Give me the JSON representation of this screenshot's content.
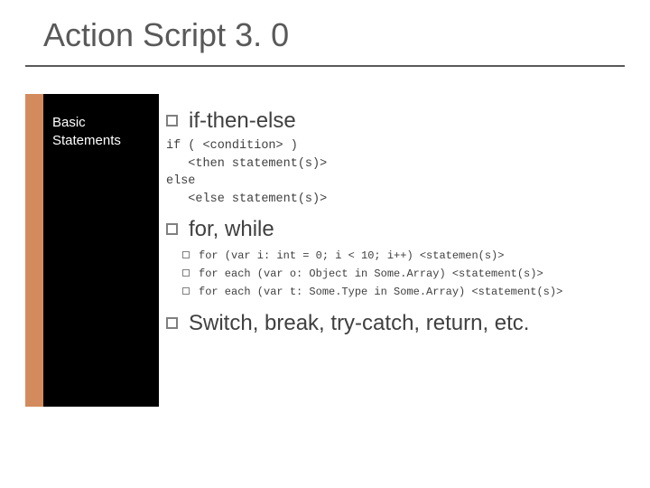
{
  "title": "Action Script 3. 0",
  "sidebar": {
    "line1": "Basic",
    "line2": "Statements"
  },
  "sections": {
    "ifthenelse": {
      "heading": "if-then-else",
      "code": "if ( <condition> )\n   <then statement(s)>\nelse\n   <else statement(s)>"
    },
    "forwhile": {
      "heading": "for, while",
      "items": [
        "for (var i: int = 0; i < 10; i++) <statemen(s)>",
        "for each (var o: Object in Some.Array) <statement(s)>",
        "for each (var t: Some.Type in Some.Array) <statement(s)>"
      ]
    },
    "other": {
      "heading": "Switch, break, try-catch, return,  etc."
    }
  },
  "colors": {
    "accent": "#d38b5d",
    "sidebar_bg": "#000000",
    "text": "#404040",
    "title": "#595959"
  }
}
